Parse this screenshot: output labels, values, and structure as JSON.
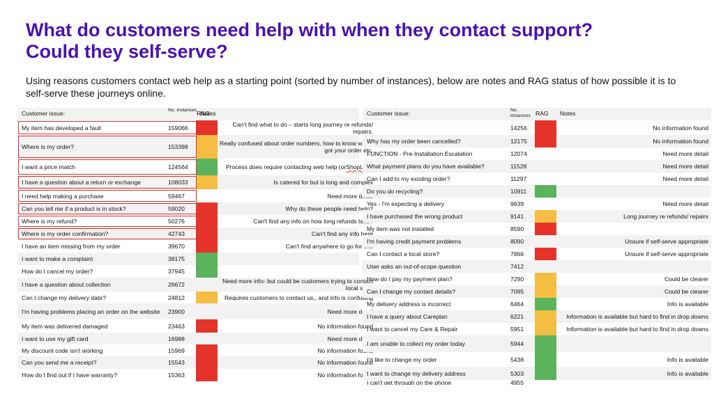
{
  "page": {
    "title": "What do customers need help with when they contact support? Could they self-serve?",
    "intro": "Using reasons customers contact web help as a starting point (sorted by number of instances), below are notes and RAG status of how possible it is to self-serve these journeys online."
  },
  "columns": {
    "issue": "Customer issue:",
    "instances": "No. instances",
    "rag": "RAG",
    "notes": "Notes"
  },
  "rag_colors": {
    "red": "#e6332a",
    "amber": "#f5bd41",
    "green": "#5bb35c",
    "highlight_border": "#d9312b",
    "title": "#4a12b0"
  },
  "left_table": {
    "rows": [
      {
        "issue": "My item has developed a fault",
        "instances": "159066",
        "rag": "red",
        "notes": "Can't find what to do – starts long journey re refunds/ repairs.",
        "highlighted": true
      },
      {
        "issue": "Where is my order?",
        "instances": "153398",
        "rag": "amber",
        "notes": "Really confused about order numbers, how to know who's got your order etc.",
        "highlighted": true
      },
      {
        "issue": "I want a price match",
        "instances": "124564",
        "rag": "green",
        "notes": "Process does require contacting web help (or ShopLive)",
        "highlighted": true
      },
      {
        "issue": "I have a question about a return or exchange",
        "instances": "108033",
        "rag": "amber",
        "notes": "Is catered for but is long and complex",
        "highlighted": true
      },
      {
        "issue": "I need help making a purchase",
        "instances": "59467",
        "rag": "",
        "notes": "Need more detail",
        "highlighted": true
      },
      {
        "issue": "Can you tell me if a product is in stock?",
        "instances": "59020",
        "rag": "red",
        "notes": "Why do these people need help?",
        "highlighted": true
      },
      {
        "issue": "Where is my refund?",
        "instances": "50276",
        "rag": "red",
        "notes": "Can't find any info on how long refunds take?",
        "highlighted": true
      },
      {
        "issue": "Where is my order confirmation?",
        "instances": "42743",
        "rag": "red",
        "notes": "Can't find any info here",
        "highlighted": true
      },
      {
        "issue": "I have an item missing from my order",
        "instances": "39670",
        "rag": "red",
        "notes": "Can't find anywhere to go for this",
        "highlighted": false
      },
      {
        "issue": "I want to make a complaint",
        "instances": "38175",
        "rag": "green",
        "notes": "",
        "highlighted": false
      },
      {
        "issue": "How do I cancel my order?",
        "instances": "37945",
        "rag": "green",
        "notes": "",
        "highlighted": false
      },
      {
        "issue": "I have a question about collection",
        "instances": "26672",
        "rag": "",
        "notes": "Need more info- but could be customers trying to contact local store",
        "highlighted": false
      },
      {
        "issue": "Can I change my delivery date?",
        "instances": "24812",
        "rag": "amber",
        "notes": "Requires customers to contact us,, and info is confusing",
        "highlighted": false
      },
      {
        "issue": "I'm having problems placing an order on the website",
        "instances": "23900",
        "rag": "",
        "notes": "Need more detail",
        "highlighted": false
      },
      {
        "issue": "My item was delivered damaged",
        "instances": "23463",
        "rag": "red",
        "notes": "No information found",
        "highlighted": false
      },
      {
        "issue": "I want to use my gift card",
        "instances": "16988",
        "rag": "",
        "notes": "Need more detail",
        "highlighted": false
      },
      {
        "issue": "My discount code isn't working",
        "instances": "15969",
        "rag": "red",
        "notes": "No information found",
        "highlighted": false
      },
      {
        "issue": "Can you send me a receipt?",
        "instances": "15543",
        "rag": "red",
        "notes": "No information found",
        "highlighted": false
      },
      {
        "issue": "How do I find out if  I have warranty?",
        "instances": "15363",
        "rag": "red",
        "notes": "No information found",
        "highlighted": false
      }
    ]
  },
  "right_table": {
    "rows": [
      {
        "issue": "",
        "instances": "14256",
        "rag": "red",
        "notes": "No information found"
      },
      {
        "issue": "Why has my order been cancelled?",
        "instances": "12175",
        "rag": "red",
        "notes": "No information found"
      },
      {
        "issue": "FUNCTION - Pre-Installation Escalation",
        "instances": "12074",
        "rag": "",
        "notes": "Need more detail"
      },
      {
        "issue": "What payment plans do you have available?",
        "instances": "11528",
        "rag": "",
        "notes": "Need more detail"
      },
      {
        "issue": "Can I add to my existing order?",
        "instances": "11297",
        "rag": "",
        "notes": "Need more detail"
      },
      {
        "issue": "Do you do recycling?",
        "instances": "10911",
        "rag": "green",
        "notes": ""
      },
      {
        "issue": "Yes - I'm expecting a delivery",
        "instances": "9639",
        "rag": "",
        "notes": "Need more detail"
      },
      {
        "issue": "I have purchased the wrong product",
        "instances": "9141",
        "rag": "amber",
        "notes": "Long journey re refunds/ repairs"
      },
      {
        "issue": "My item was not installed",
        "instances": "8590",
        "rag": "red",
        "notes": ""
      },
      {
        "issue": "I'm having credit payment problems",
        "instances": "8090",
        "rag": "",
        "notes": "Unsure if self-serve appropriate"
      },
      {
        "issue": "Can I contact a local store?",
        "instances": "7866",
        "rag": "red",
        "notes": "Unsure if self-serve appropriate"
      },
      {
        "issue": "User asks an out-of-scope question",
        "instances": "7412",
        "rag": "",
        "notes": ""
      },
      {
        "issue": "How do I pay my payment plan?",
        "instances": "7290",
        "rag": "amber",
        "notes": "Could be clearer"
      },
      {
        "issue": "Can I change my contact details?",
        "instances": "7095",
        "rag": "amber",
        "notes": "Could be clearer"
      },
      {
        "issue": "My delivery address is incorrect",
        "instances": "6464",
        "rag": "green",
        "notes": "Info is available"
      },
      {
        "issue": "I have a query about Careplan",
        "instances": "6221",
        "rag": "amber",
        "notes": "Information is available but hard to find in drop downs"
      },
      {
        "issue": "I want to cancel my Care & Repair",
        "instances": "5951",
        "rag": "amber",
        "notes": "Information is available but hard to find in drop downs"
      },
      {
        "issue": "I am unable to collect my order today",
        "instances": "5944",
        "rag": "green",
        "notes": ""
      },
      {
        "issue": "I'd like to change my order",
        "instances": "5438",
        "rag": "green",
        "notes": "Info is available"
      },
      {
        "issue": "I want to change my  delivery address",
        "instances": "5303",
        "rag": "green",
        "notes": "Info is available"
      },
      {
        "issue": "I can't get through on the phone",
        "instances": "4955",
        "rag": "",
        "notes": ""
      }
    ]
  }
}
